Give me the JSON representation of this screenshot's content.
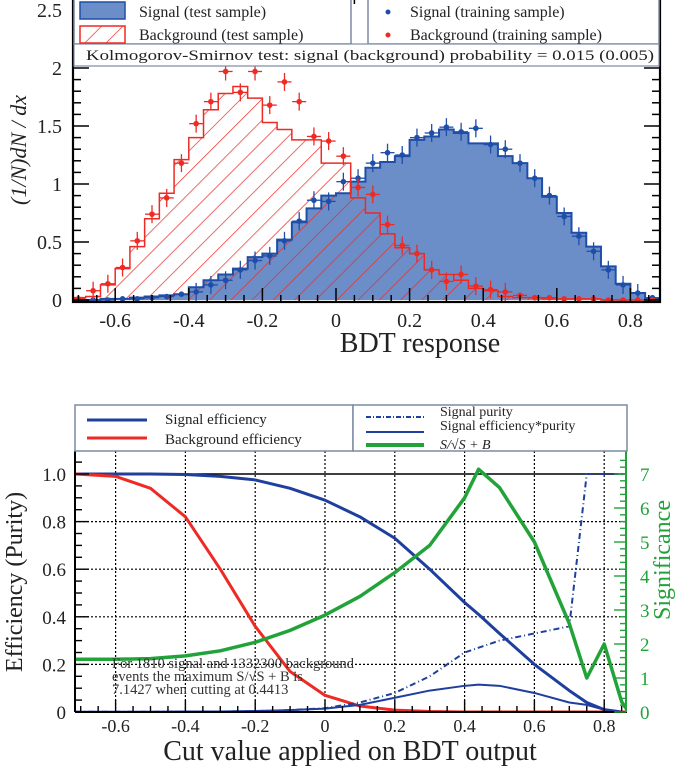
{
  "chart_data": [
    {
      "type": "bar",
      "subtype": "histogram",
      "title": "",
      "xlabel": "BDT response",
      "ylabel": "(1/N) dN / dx",
      "xlim": [
        -0.715,
        0.88
      ],
      "ylim": [
        0,
        2.6
      ],
      "xticks": [
        "-0.6",
        "-0.4",
        "-0.2",
        "0",
        "0.2",
        "0.4",
        "0.6",
        "0.8"
      ],
      "xtick_values": [
        -0.6,
        -0.4,
        -0.2,
        0,
        0.2,
        0.4,
        0.6,
        0.8
      ],
      "yticks": [
        "0",
        "0.5",
        "1",
        "1.5",
        "2",
        "2.5"
      ],
      "ytick_values": [
        0,
        0.5,
        1,
        1.5,
        2,
        2.5
      ],
      "grid": false,
      "bin_edges_start": -0.72,
      "bin_width": 0.04,
      "series": [
        {
          "name": "Signal (test sample)",
          "style": "filled",
          "color": "#6b8ec9",
          "edge_color": "#1f4ea8",
          "values": [
            0.0,
            0.0,
            0.01,
            0.01,
            0.02,
            0.03,
            0.04,
            0.05,
            0.11,
            0.17,
            0.22,
            0.27,
            0.37,
            0.4,
            0.52,
            0.67,
            0.79,
            0.9,
            0.92,
            1.02,
            1.14,
            1.19,
            1.24,
            1.38,
            1.41,
            1.47,
            1.44,
            1.35,
            1.35,
            1.24,
            1.18,
            1.05,
            0.89,
            0.75,
            0.58,
            0.46,
            0.29,
            0.14,
            0.06,
            0.01
          ]
        },
        {
          "name": "Background (test sample)",
          "style": "hatched",
          "color": "#ee2a24",
          "values": [
            0.02,
            0.03,
            0.13,
            0.27,
            0.46,
            0.7,
            0.92,
            1.21,
            1.4,
            1.64,
            1.78,
            1.84,
            1.74,
            1.53,
            1.47,
            1.38,
            1.38,
            1.18,
            1.18,
            0.88,
            0.75,
            0.57,
            0.45,
            0.4,
            0.26,
            0.22,
            0.17,
            0.1,
            0.08,
            0.03,
            0.02,
            0.02,
            0.01,
            0.01,
            0.01,
            0.01,
            0.0,
            0.0,
            0.0,
            0.0
          ]
        },
        {
          "name": "Signal (training sample)",
          "style": "points",
          "color": "#1f4ea8",
          "values": [
            0.0,
            0.0,
            0.0,
            0.01,
            0.01,
            0.02,
            0.03,
            0.05,
            0.07,
            0.13,
            0.17,
            0.26,
            0.34,
            0.38,
            0.51,
            0.68,
            0.86,
            0.85,
            1.02,
            1.05,
            1.18,
            1.27,
            1.25,
            1.4,
            1.44,
            1.49,
            1.45,
            1.48,
            1.34,
            1.3,
            1.18,
            1.05,
            0.9,
            0.72,
            0.55,
            0.42,
            0.26,
            0.13,
            0.06,
            0.02
          ]
        },
        {
          "name": "Background (training sample)",
          "style": "points",
          "color": "#ee2a24",
          "values": [
            0.01,
            0.08,
            0.14,
            0.28,
            0.51,
            0.74,
            0.88,
            1.18,
            1.52,
            1.71,
            1.97,
            1.79,
            1.97,
            1.68,
            1.88,
            1.71,
            1.41,
            1.37,
            1.24,
            0.97,
            0.91,
            0.65,
            0.47,
            0.4,
            0.26,
            0.16,
            0.22,
            0.12,
            0.09,
            0.07,
            0.04,
            0.02,
            0.02,
            0.01,
            0.01,
            0.01,
            0.0,
            0.0,
            0.0,
            0.0
          ]
        }
      ],
      "legend": [
        "Signal (test sample)",
        "Background (test sample)",
        "Signal (training sample)",
        "Background (training sample)"
      ],
      "legend_position": "top",
      "annotation": "Kolmogorov-Smirnov test: signal (background) probability = 0.015 (0.005)"
    },
    {
      "type": "line",
      "title": "",
      "xlabel": "Cut value applied on BDT output",
      "ylabel": "Efficiency (Purity)",
      "y2label": "Significance",
      "xlim": [
        -0.715,
        0.87
      ],
      "ylim": [
        0,
        1.1
      ],
      "y2lim": [
        0,
        7.7
      ],
      "xticks": [
        "-0.6",
        "-0.4",
        "-0.2",
        "0",
        "0.2",
        "0.4",
        "0.6",
        "0.8"
      ],
      "xtick_values": [
        -0.6,
        -0.4,
        -0.2,
        0,
        0.2,
        0.4,
        0.6,
        0.8
      ],
      "yticks": [
        "0",
        "0.2",
        "0.4",
        "0.6",
        "0.8",
        "1.0"
      ],
      "ytick_values": [
        0,
        0.2,
        0.4,
        0.6,
        0.8,
        1.0
      ],
      "y2ticks": [
        "0",
        "1",
        "2",
        "3",
        "4",
        "5",
        "6",
        "7"
      ],
      "y2tick_values": [
        0,
        1,
        2,
        3,
        4,
        5,
        6,
        7
      ],
      "grid": true,
      "x": [
        -0.715,
        -0.6,
        -0.5,
        -0.4,
        -0.3,
        -0.2,
        -0.1,
        0.0,
        0.1,
        0.2,
        0.3,
        0.4,
        0.44,
        0.5,
        0.6,
        0.7,
        0.75,
        0.8,
        0.85,
        0.87
      ],
      "series": [
        {
          "name": "Signal efficiency",
          "axis": "left",
          "color": "#1f3f9e",
          "values": [
            1.0,
            1.0,
            1.0,
            0.998,
            0.99,
            0.975,
            0.94,
            0.89,
            0.82,
            0.73,
            0.6,
            0.46,
            0.41,
            0.33,
            0.2,
            0.09,
            0.04,
            0.01,
            0.0,
            0.0
          ]
        },
        {
          "name": "Background efficiency",
          "axis": "left",
          "color": "#ee2a24",
          "values": [
            1.0,
            0.99,
            0.94,
            0.82,
            0.6,
            0.36,
            0.17,
            0.07,
            0.025,
            0.008,
            0.002,
            0.0,
            0.0,
            0.0,
            0.0,
            0.0,
            0.0,
            0.0,
            0.0,
            0.0
          ]
        },
        {
          "name": "Signal purity",
          "axis": "left",
          "style": "dash-dot",
          "color": "#1f3f9e",
          "values": [
            0.001,
            0.001,
            0.001,
            0.002,
            0.002,
            0.004,
            0.008,
            0.016,
            0.04,
            0.08,
            0.15,
            0.25,
            0.27,
            0.3,
            0.33,
            0.36,
            1.0,
            1.0,
            1.0,
            1.0
          ]
        },
        {
          "name": "Signal efficiency*purity",
          "axis": "left",
          "color": "#1f3f9e",
          "values": [
            0.001,
            0.001,
            0.001,
            0.002,
            0.002,
            0.004,
            0.008,
            0.014,
            0.03,
            0.06,
            0.09,
            0.11,
            0.115,
            0.11,
            0.08,
            0.04,
            0.03,
            0.01,
            0.0,
            0.0
          ]
        },
        {
          "name": "S/sqrt(S+B)",
          "axis": "right",
          "color": "#22a33a",
          "values": [
            1.55,
            1.55,
            1.57,
            1.65,
            1.8,
            2.05,
            2.4,
            2.85,
            3.4,
            4.1,
            4.9,
            6.3,
            7.14,
            6.6,
            5.0,
            2.6,
            1.0,
            2.0,
            0.3,
            0.0
          ]
        }
      ],
      "legend": [
        "Signal efficiency",
        "Background efficiency",
        "Signal purity",
        "Signal efficiency*purity",
        "S/√(S+B)"
      ],
      "legend_position": "top",
      "annotation_lines": [
        "For 1810 signal and 1332300 background",
        "events the maximum S/√S + B is",
        "7.1427 when cutting at 0.4413"
      ]
    }
  ],
  "top_chart": {
    "ylabel": "(1/N)dN / dx",
    "xlabel": "BDT response",
    "legend": {
      "signal_test": "Signal (test sample)",
      "background_test": "Background (test sample)",
      "signal_train": "Signal (training sample)",
      "background_train": "Background (training sample)"
    },
    "ks_text": "Kolmogorov-Smirnov test: signal (background) probability = 0.015 (0.005)"
  },
  "bottom_chart": {
    "ylabel": "Efficiency (Purity)",
    "y2label": "Significance",
    "xlabel": "Cut value applied on BDT output",
    "legend": {
      "sig_eff": "Signal efficiency",
      "bkg_eff": "Background efficiency",
      "sig_purity": "Signal purity",
      "sig_eff_purity": "Signal efficiency*purity",
      "significance": "S/√S + B"
    },
    "annotation": {
      "line1": "For 1810 signal and 1332300 background",
      "line2": "events the maximum S/√S + B is",
      "line3": "7.1427 when cutting at 0.4413"
    }
  },
  "colors": {
    "signal_fill": "#6b8ec9",
    "signal_edge": "#1f4ea8",
    "background": "#ee2a24",
    "significance": "#22a33a",
    "legend_border": "#7b8aa3"
  }
}
